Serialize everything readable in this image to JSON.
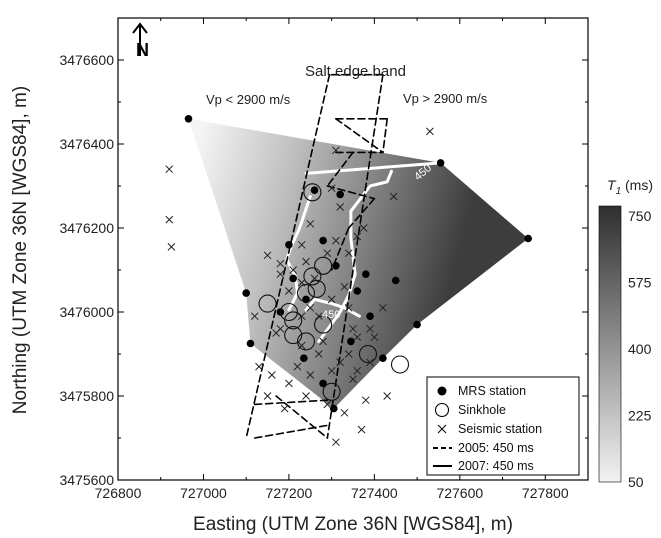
{
  "chart_data": {
    "type": "scatter",
    "title": "",
    "xlabel": "Easting (UTM Zone 36N [WGS84], m)",
    "ylabel": "Northing (UTM Zone 36N [WGS84], m)",
    "xlim": [
      726800,
      727900
    ],
    "ylim": [
      3475600,
      3476700
    ],
    "xticks": [
      726800,
      727000,
      727200,
      727400,
      727600,
      727800
    ],
    "yticks": [
      3475600,
      3475800,
      3476000,
      3476200,
      3476400,
      3476600
    ],
    "xtick_labels": [
      "726800",
      "727000",
      "727200",
      "727400",
      "727600",
      "727800"
    ],
    "ytick_labels": [
      "3475600",
      "3475800",
      "3476000",
      "3476200",
      "3476400",
      "3476600"
    ],
    "north_arrow": "N",
    "annotations": {
      "band_title": "Salt edge band",
      "left_label": "Vp < 2900 m/s",
      "right_label": "Vp > 2900 m/s",
      "contour_labels": [
        "450",
        "450"
      ]
    },
    "colorbar": {
      "title_main": "T",
      "title_sub": "1",
      "title_unit": " (ms)",
      "ticks": [
        "750",
        "575",
        "400",
        "225",
        "50"
      ],
      "tick_values": [
        750,
        575,
        400,
        225,
        50
      ],
      "range": [
        50,
        750
      ],
      "colors": [
        "#f2f2f2",
        "#2f2f2f"
      ]
    },
    "legend": {
      "position": "bottom-right",
      "entries": [
        "MRS station",
        "Sinkhole",
        "Seismic station",
        "2005: 450 ms",
        "2007: 450 ms"
      ]
    },
    "series": [
      {
        "name": "MRS station",
        "marker": "filled-circle",
        "points": [
          [
            726965,
            3476460
          ],
          [
            727555,
            3476355
          ],
          [
            727760,
            3476175
          ],
          [
            727260,
            3476290
          ],
          [
            727320,
            3476280
          ],
          [
            727100,
            3476045
          ],
          [
            727110,
            3475925
          ],
          [
            727200,
            3476160
          ],
          [
            727280,
            3476170
          ],
          [
            727310,
            3476110
          ],
          [
            727380,
            3476090
          ],
          [
            727210,
            3476080
          ],
          [
            727360,
            3476050
          ],
          [
            727390,
            3475990
          ],
          [
            727240,
            3476030
          ],
          [
            727180,
            3476000
          ],
          [
            727450,
            3476075
          ],
          [
            727500,
            3475970
          ],
          [
            727235,
            3475890
          ],
          [
            727345,
            3475930
          ],
          [
            727420,
            3475890
          ],
          [
            727305,
            3475770
          ],
          [
            727280,
            3475830
          ]
        ]
      },
      {
        "name": "Sinkhole",
        "marker": "open-circle",
        "points": [
          [
            727255,
            3476285
          ],
          [
            727280,
            3476110
          ],
          [
            727255,
            3476085
          ],
          [
            727240,
            3476045
          ],
          [
            727265,
            3476055
          ],
          [
            727150,
            3476020
          ],
          [
            727200,
            3476000
          ],
          [
            727210,
            3475980
          ],
          [
            727210,
            3475945
          ],
          [
            727240,
            3475930
          ],
          [
            727280,
            3475970
          ],
          [
            727385,
            3475900
          ],
          [
            727460,
            3475875
          ],
          [
            727300,
            3475810
          ]
        ]
      },
      {
        "name": "Seismic station",
        "marker": "x",
        "points": [
          [
            726920,
            3476340
          ],
          [
            726920,
            3476220
          ],
          [
            726925,
            3476155
          ],
          [
            727150,
            3476135
          ],
          [
            727180,
            3476115
          ],
          [
            727210,
            3476100
          ],
          [
            727230,
            3476160
          ],
          [
            727340,
            3476140
          ],
          [
            727360,
            3476180
          ],
          [
            727250,
            3476210
          ],
          [
            727320,
            3476250
          ],
          [
            727375,
            3476200
          ],
          [
            727445,
            3476275
          ],
          [
            727530,
            3476430
          ],
          [
            727310,
            3476385
          ],
          [
            727300,
            3476295
          ],
          [
            727120,
            3475990
          ],
          [
            727180,
            3475960
          ],
          [
            727230,
            3475920
          ],
          [
            727270,
            3475900
          ],
          [
            727320,
            3475880
          ],
          [
            727360,
            3475860
          ],
          [
            727390,
            3475880
          ],
          [
            727130,
            3475870
          ],
          [
            727160,
            3475850
          ],
          [
            727200,
            3475830
          ],
          [
            727250,
            3475850
          ],
          [
            727300,
            3475860
          ],
          [
            727350,
            3475840
          ],
          [
            727150,
            3475800
          ],
          [
            727190,
            3475770
          ],
          [
            727240,
            3475800
          ],
          [
            727290,
            3475780
          ],
          [
            727330,
            3475760
          ],
          [
            727380,
            3475790
          ],
          [
            727430,
            3475800
          ],
          [
            727310,
            3475690
          ],
          [
            727340,
            3475900
          ],
          [
            727270,
            3475990
          ],
          [
            727300,
            3476030
          ],
          [
            727330,
            3476060
          ],
          [
            727260,
            3476080
          ],
          [
            727230,
            3476070
          ],
          [
            727170,
            3475950
          ],
          [
            727240,
            3476120
          ],
          [
            727290,
            3476140
          ],
          [
            727310,
            3476170
          ],
          [
            727180,
            3476090
          ],
          [
            727200,
            3476050
          ],
          [
            727230,
            3475990
          ],
          [
            727250,
            3476010
          ],
          [
            727340,
            3476010
          ],
          [
            727350,
            3475960
          ],
          [
            727390,
            3475960
          ],
          [
            727400,
            3475940
          ],
          [
            727420,
            3476010
          ],
          [
            727280,
            3475930
          ],
          [
            727220,
            3475870
          ],
          [
            727370,
            3475720
          ],
          [
            727360,
            3475940
          ]
        ]
      }
    ],
    "shaded_region": {
      "name": "T1 interpolation hull",
      "points": [
        [
          726965,
          3476460
        ],
        [
          727555,
          3476355
        ],
        [
          727760,
          3476175
        ],
        [
          727500,
          3475970
        ],
        [
          727420,
          3475890
        ],
        [
          727305,
          3475770
        ],
        [
          727110,
          3475925
        ],
        [
          727100,
          3476045
        ]
      ],
      "gradient_high_at": [
        727550,
        3476300
      ],
      "gradient_low_at": [
        726980,
        3476400
      ]
    },
    "contours": [
      {
        "name": "2007: 450 ms",
        "style": "solid-white",
        "lines": [
          [
            [
              727240,
              3476330
            ],
            [
              727555,
              3476355
            ]
          ],
          [
            [
              727250,
              3476275
            ],
            [
              727225,
              3476200
            ],
            [
              727205,
              3476155
            ],
            [
              727195,
              3476125
            ],
            [
              727215,
              3476085
            ],
            [
              727220,
              3476045
            ],
            [
              727200,
              3476005
            ]
          ],
          [
            [
              727440,
              3476335
            ],
            [
              727430,
              3476310
            ],
            [
              727390,
              3476300
            ],
            [
              727345,
              3476240
            ],
            [
              727345,
              3476175
            ],
            [
              727355,
              3476090
            ],
            [
              727340,
              3476040
            ],
            [
              727320,
              3476000
            ],
            [
              727295,
              3475965
            ],
            [
              727270,
              3475930
            ]
          ],
          [
            [
              727240,
              3476005
            ],
            [
              727260,
              3476030
            ],
            [
              727300,
              3476020
            ],
            [
              727330,
              3476010
            ],
            [
              727365,
              3475990
            ]
          ]
        ]
      },
      {
        "name": "2005: 450 ms",
        "style": "dashed-black",
        "lines": [
          [
            [
              727295,
              3476565
            ],
            [
              727100,
              3475700
            ]
          ],
          [
            [
              727300,
              3476565
            ],
            [
              727420,
              3476565
            ]
          ],
          [
            [
              727420,
              3476565
            ],
            [
              727290,
              3475700
            ]
          ],
          [
            [
              727310,
              3476460
            ],
            [
              727430,
              3476460
            ]
          ],
          [
            [
              727430,
              3476460
            ],
            [
              727420,
              3476380
            ]
          ],
          [
            [
              727310,
              3476460
            ],
            [
              727420,
              3476380
            ]
          ],
          [
            [
              727350,
              3476380
            ],
            [
              727290,
              3476300
            ]
          ],
          [
            [
              727310,
              3476380
            ],
            [
              727420,
              3476380
            ]
          ],
          [
            [
              727290,
              3476300
            ],
            [
              727400,
              3476270
            ]
          ],
          [
            [
              727400,
              3476270
            ],
            [
              727340,
              3476200
            ]
          ],
          [
            [
              727340,
              3476200
            ],
            [
              727300,
              3476100
            ]
          ],
          [
            [
              727120,
              3475780
            ],
            [
              727290,
              3475790
            ]
          ],
          [
            [
              727170,
              3475800
            ],
            [
              727290,
              3475700
            ]
          ],
          [
            [
              727120,
              3475700
            ],
            [
              727290,
              3475730
            ]
          ]
        ]
      }
    ]
  }
}
